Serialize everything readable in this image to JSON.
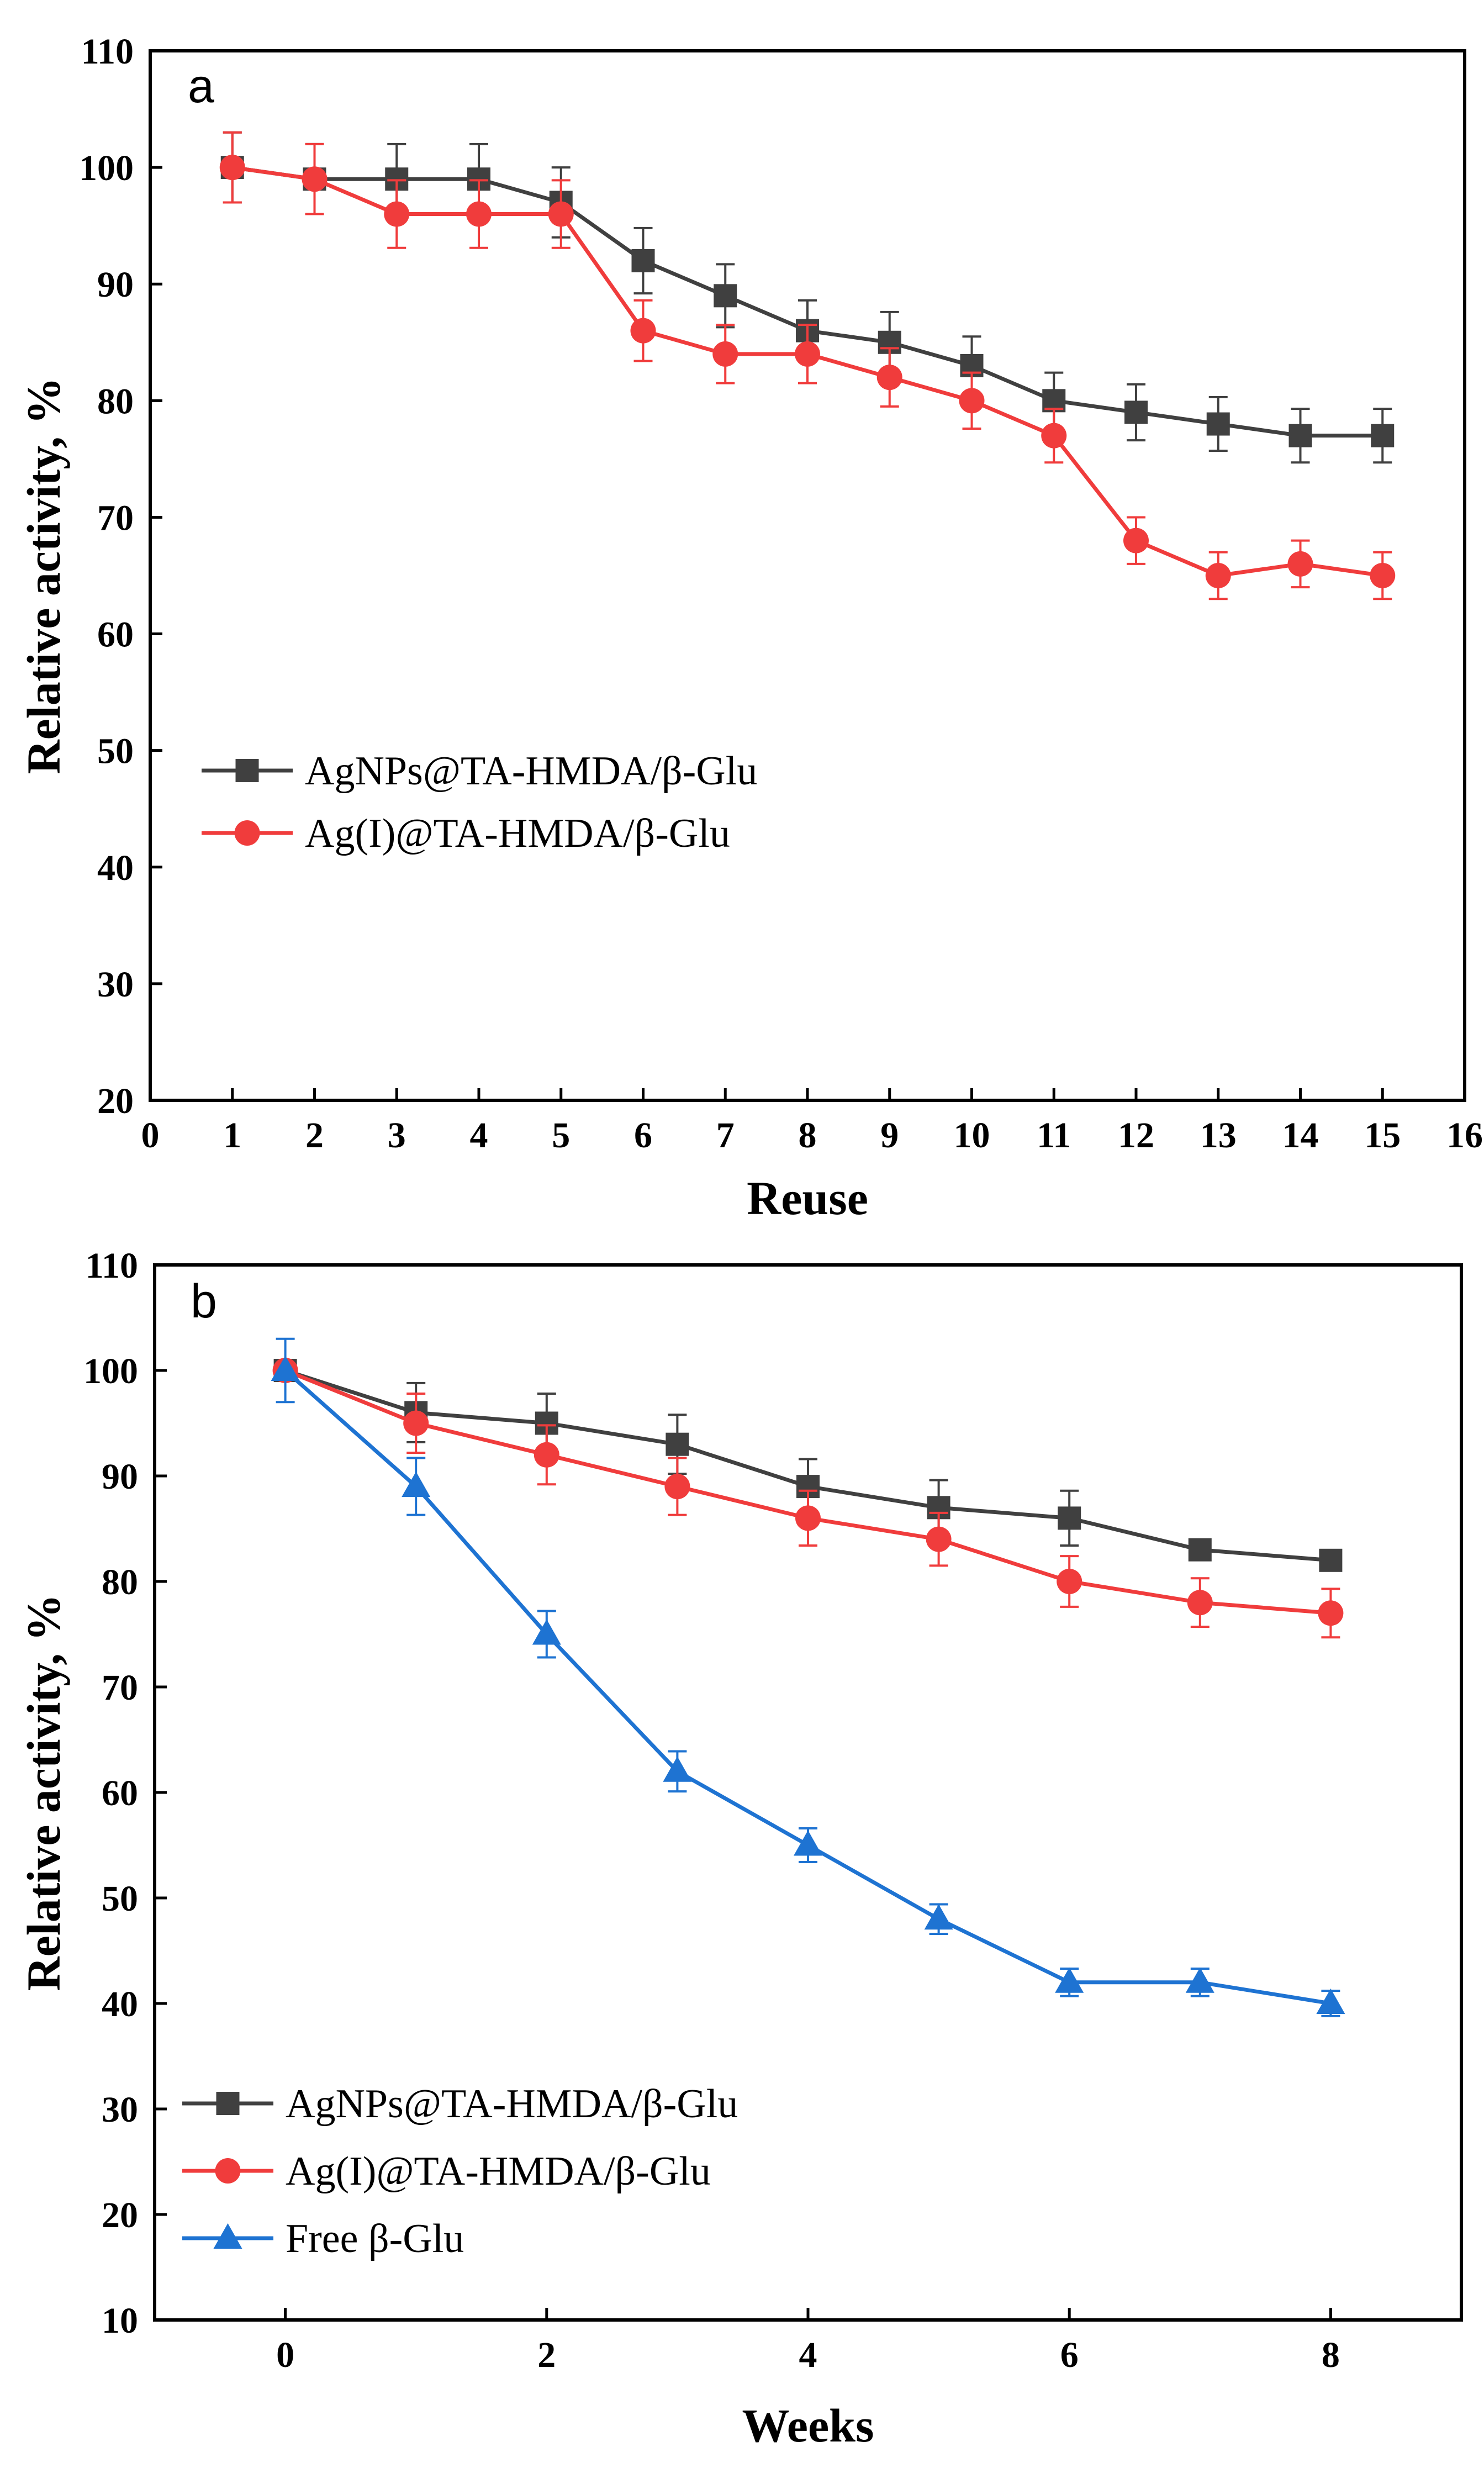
{
  "chart_data": [
    {
      "type": "line",
      "panel_label": "a",
      "xlabel": "Reuse",
      "ylabel": "Relative activity, %",
      "xlim": [
        0,
        16
      ],
      "ylim": [
        20,
        110
      ],
      "xticks": [
        0,
        1,
        2,
        3,
        4,
        5,
        6,
        7,
        8,
        9,
        10,
        11,
        12,
        13,
        14,
        15,
        16
      ],
      "yticks": [
        20,
        30,
        40,
        50,
        60,
        70,
        80,
        90,
        100,
        110
      ],
      "legend_position": "middle-left",
      "series": [
        {
          "name": "AgNPs@TA-HMDA/β-Glu",
          "color": "#404040",
          "marker": "square",
          "x": [
            1,
            2,
            3,
            4,
            5,
            6,
            7,
            8,
            9,
            10,
            11,
            12,
            13,
            14,
            15
          ],
          "values": [
            100,
            99,
            99,
            99,
            97,
            92,
            89,
            86,
            85,
            83,
            80,
            79,
            78,
            77,
            77
          ],
          "errors": [
            3,
            3,
            3,
            3,
            3,
            2.8,
            2.7,
            2.6,
            2.6,
            2.5,
            2.4,
            2.4,
            2.3,
            2.3,
            2.3
          ]
        },
        {
          "name": "Ag(I)@TA-HMDA/β-Glu",
          "color": "#f03c3c",
          "marker": "circle",
          "x": [
            1,
            2,
            3,
            4,
            5,
            6,
            7,
            8,
            9,
            10,
            11,
            12,
            13,
            14,
            15
          ],
          "values": [
            100,
            99,
            96,
            96,
            96,
            86,
            84,
            84,
            82,
            80,
            77,
            68,
            65,
            66,
            65
          ],
          "errors": [
            3,
            3,
            2.9,
            2.9,
            2.9,
            2.6,
            2.5,
            2.5,
            2.5,
            2.4,
            2.3,
            2,
            2,
            2,
            2
          ]
        }
      ]
    },
    {
      "type": "line",
      "panel_label": "b",
      "xlabel": "Weeks",
      "ylabel": "Relative activity, %",
      "xlim": [
        -1,
        9
      ],
      "ylim": [
        10,
        110
      ],
      "xticks": [
        0,
        2,
        4,
        6,
        8
      ],
      "yticks": [
        10,
        20,
        30,
        40,
        50,
        60,
        70,
        80,
        90,
        100,
        110
      ],
      "legend_position": "bottom-left",
      "series": [
        {
          "name": "AgNPs@TA-HMDA/β-Glu",
          "color": "#404040",
          "marker": "square",
          "x": [
            0,
            1,
            2,
            3,
            4,
            5,
            6,
            7,
            8
          ],
          "values": [
            100,
            96,
            95,
            93,
            89,
            87,
            86,
            83,
            82
          ],
          "errors": [
            0,
            2.8,
            2.8,
            2.8,
            2.6,
            2.6,
            2.6,
            0,
            0
          ]
        },
        {
          "name": "Ag(I)@TA-HMDA/β-Glu",
          "color": "#f03c3c",
          "marker": "circle",
          "x": [
            0,
            1,
            2,
            3,
            4,
            5,
            6,
            7,
            8
          ],
          "values": [
            100,
            95,
            92,
            89,
            86,
            84,
            80,
            78,
            77
          ],
          "errors": [
            0,
            2.8,
            2.8,
            2.7,
            2.6,
            2.5,
            2.4,
            2.3,
            2.3
          ]
        },
        {
          "name": "Free β-Glu",
          "color": "#1e73d2",
          "marker": "triangle",
          "x": [
            0,
            1,
            2,
            3,
            4,
            5,
            6,
            7,
            8
          ],
          "values": [
            100,
            89,
            75,
            62,
            55,
            48,
            42,
            42,
            40
          ],
          "errors": [
            3,
            2.7,
            2.2,
            1.9,
            1.6,
            1.4,
            1.3,
            1.3,
            1.2
          ]
        }
      ]
    }
  ]
}
